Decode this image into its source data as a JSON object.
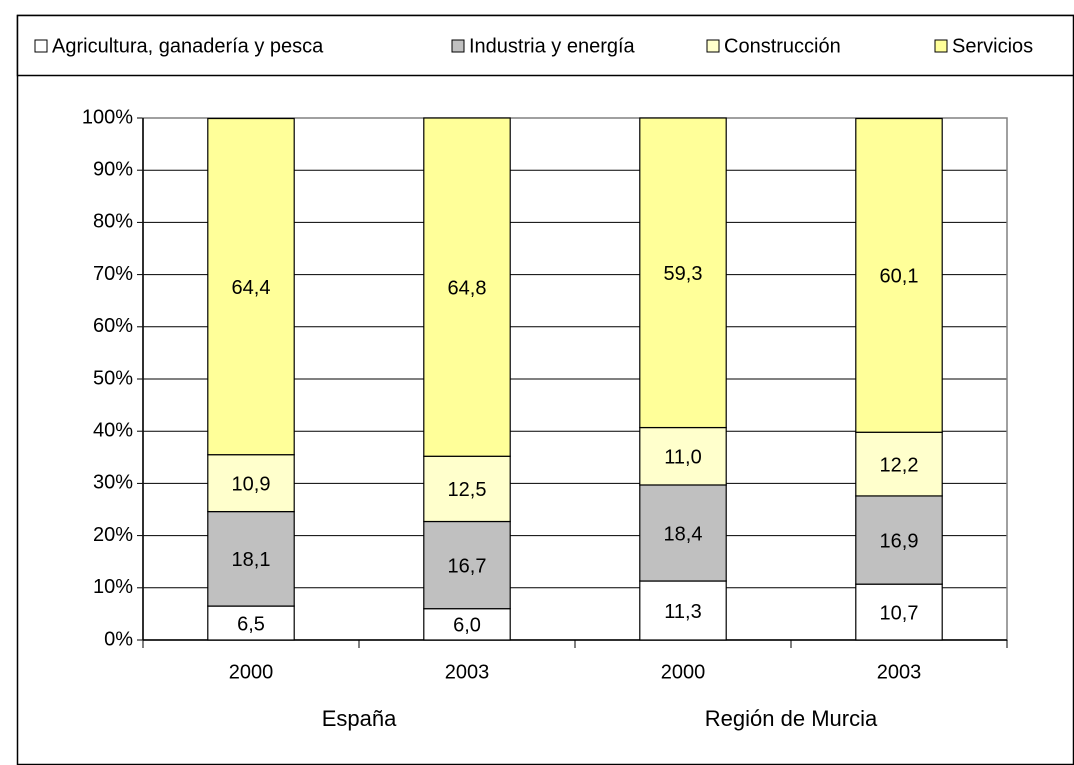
{
  "chart_data": {
    "type": "stacked_bar",
    "categories": [
      "2000",
      "2003",
      "2000",
      "2003"
    ],
    "groups": [
      "España",
      "Región de Murcia"
    ],
    "series": [
      {
        "name": "Agricultura, ganadería y pesca",
        "color": "#ffffff",
        "values": [
          6.5,
          6.0,
          11.3,
          10.7
        ],
        "value_labels": [
          "6,5",
          "6,0",
          "11,3",
          "10,7"
        ]
      },
      {
        "name": "Industria y energía",
        "color": "#c0c0c0",
        "values": [
          18.1,
          16.7,
          18.4,
          16.9
        ],
        "value_labels": [
          "18,1",
          "16,7",
          "18,4",
          "16,9"
        ]
      },
      {
        "name": "Construcción",
        "color": "#ffffcc",
        "values": [
          10.9,
          12.5,
          11.0,
          12.2
        ],
        "value_labels": [
          "10,9",
          "12,5",
          "11,0",
          "12,2"
        ]
      },
      {
        "name": "Servicios",
        "color": "#ffff99",
        "values": [
          64.4,
          64.8,
          59.3,
          60.1
        ],
        "value_labels": [
          "64,4",
          "64,8",
          "59,3",
          "60,1"
        ]
      }
    ],
    "ylim": [
      0,
      100
    ],
    "yticks": [
      {
        "value": 0,
        "label": "0%"
      },
      {
        "value": 10,
        "label": "10%"
      },
      {
        "value": 20,
        "label": "20%"
      },
      {
        "value": 30,
        "label": "30%"
      },
      {
        "value": 40,
        "label": "40%"
      },
      {
        "value": 50,
        "label": "50%"
      },
      {
        "value": 60,
        "label": "60%"
      },
      {
        "value": 70,
        "label": "70%"
      },
      {
        "value": 80,
        "label": "80%"
      },
      {
        "value": 90,
        "label": "90%"
      },
      {
        "value": 100,
        "label": "100%"
      }
    ],
    "grid": true,
    "legend": "top"
  }
}
